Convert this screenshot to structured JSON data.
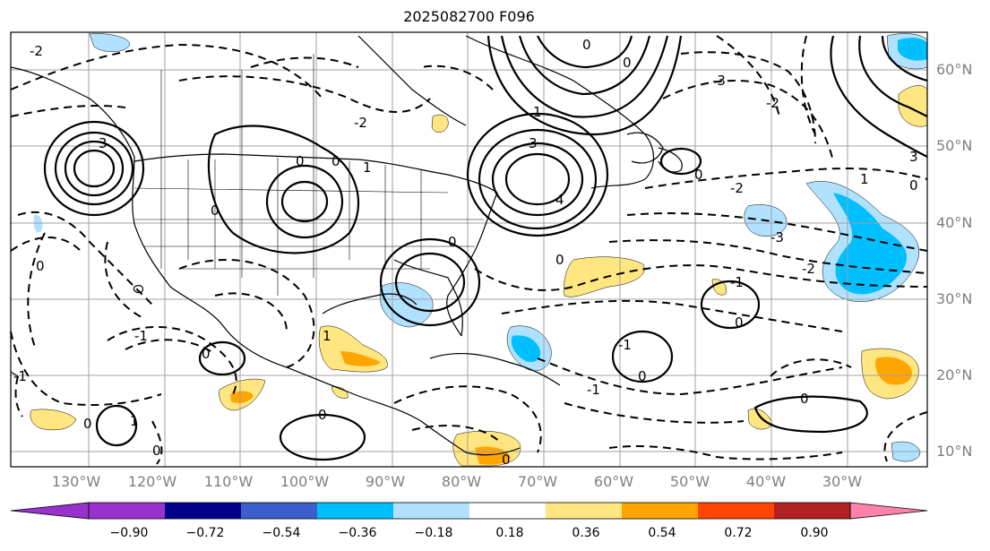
{
  "title": "2025082700 F096",
  "longitude_labels": [
    "130°W",
    "120°W",
    "110°W",
    "100°W",
    "90°W",
    "80°W",
    "70°W",
    "60°W",
    "50°W",
    "40°W",
    "30°W"
  ],
  "latitude_labels": [
    "60°N",
    "50°N",
    "40°N",
    "30°N",
    "20°N",
    "10°N"
  ],
  "colorbar": {
    "ticks": [
      "−0.90",
      "−0.72",
      "−0.54",
      "−0.36",
      "−0.18",
      "0.18",
      "0.36",
      "0.54",
      "0.72",
      "0.90"
    ],
    "colors": [
      "#9932cc",
      "#00008b",
      "#3a5fcd",
      "#00bfff",
      "#b0e2ff",
      "#ffffff",
      "#ffe680",
      "#ffa500",
      "#ff4500",
      "#b22222",
      "#ff82ab"
    ]
  },
  "contour_labels": [
    "0",
    "1",
    "2",
    "3",
    "4",
    "-1",
    "-2",
    "-3"
  ],
  "colors": {
    "axis_label": "#7f7f7f",
    "grid": "#a0a0a0",
    "contour": "#000000"
  }
}
